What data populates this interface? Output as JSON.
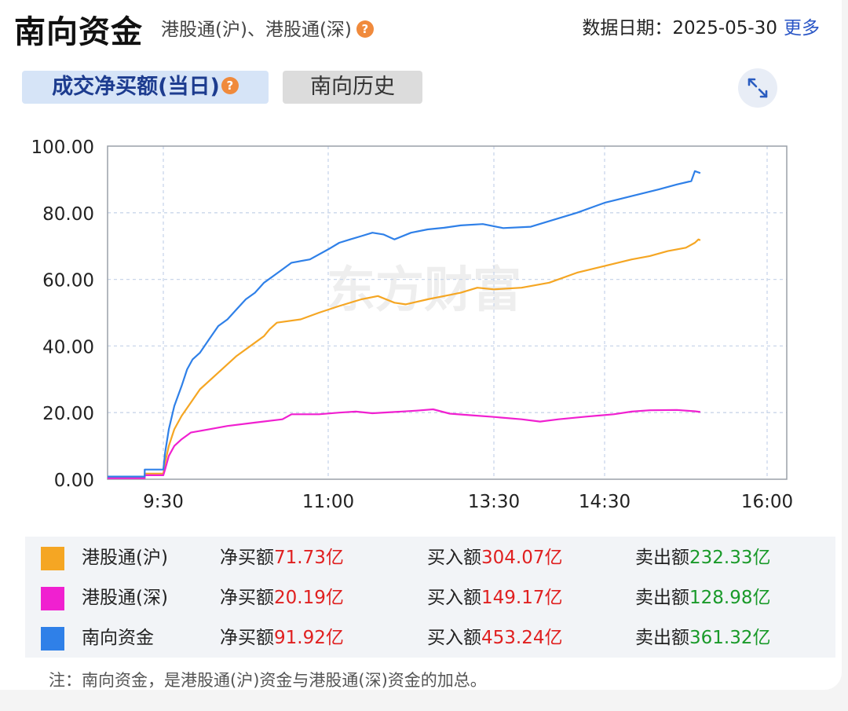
{
  "header": {
    "title": "南向资金",
    "subtitle": "港股通(沪)、港股通(深)",
    "date_label": "数据日期：",
    "date_value": "2025-05-30",
    "more_label": "更多"
  },
  "tabs": [
    {
      "label": "成交净买额(当日)",
      "active": true
    },
    {
      "label": "南向历史",
      "active": false
    }
  ],
  "icons": {
    "help": "?",
    "expand": "expand-arrows-icon"
  },
  "watermark": "东方财富",
  "chart_data": {
    "type": "line",
    "x_ticks": [
      "9:30",
      "11:00",
      "13:30",
      "14:30",
      "16:00"
    ],
    "y_ticks": [
      "100.00",
      "80.00",
      "60.00",
      "40.00",
      "20.00",
      "0.00"
    ],
    "ylim": [
      0,
      100
    ],
    "grid": true,
    "series": [
      {
        "name": "港股通(沪)",
        "color": "#f5a623",
        "points": [
          [
            "9:00",
            0.5
          ],
          [
            "9:20",
            0.5
          ],
          [
            "9:20",
            1.7
          ],
          [
            "9:30",
            1.7
          ],
          [
            "9:31",
            5
          ],
          [
            "9:33",
            10
          ],
          [
            "9:36",
            15
          ],
          [
            "9:40",
            19
          ],
          [
            "9:45",
            23
          ],
          [
            "9:50",
            27
          ],
          [
            "10:00",
            32
          ],
          [
            "10:10",
            37
          ],
          [
            "10:20",
            41
          ],
          [
            "10:25",
            43
          ],
          [
            "10:28",
            45
          ],
          [
            "10:32",
            47
          ],
          [
            "10:45",
            48
          ],
          [
            "10:55",
            50
          ],
          [
            "11:10",
            52
          ],
          [
            "11:30",
            54
          ],
          [
            "11:45",
            55
          ],
          [
            "12:00",
            53
          ],
          [
            "12:10",
            52.5
          ],
          [
            "12:30",
            54
          ],
          [
            "12:45",
            55
          ],
          [
            "13:00",
            56
          ],
          [
            "13:15",
            57.5
          ],
          [
            "13:30",
            57
          ],
          [
            "13:45",
            57.5
          ],
          [
            "14:00",
            59
          ],
          [
            "14:15",
            62
          ],
          [
            "14:30",
            64
          ],
          [
            "14:45",
            66
          ],
          [
            "14:55",
            67
          ],
          [
            "15:05",
            68.5
          ],
          [
            "15:15",
            69.5
          ],
          [
            "15:20",
            71
          ],
          [
            "15:22",
            72
          ],
          [
            "15:23",
            71.73
          ]
        ]
      },
      {
        "name": "港股通(深)",
        "color": "#f020d0",
        "points": [
          [
            "9:00",
            0.3
          ],
          [
            "9:20",
            0.3
          ],
          [
            "9:20",
            1.2
          ],
          [
            "9:30",
            1.2
          ],
          [
            "9:31",
            3
          ],
          [
            "9:33",
            7
          ],
          [
            "9:36",
            10
          ],
          [
            "9:40",
            12
          ],
          [
            "9:45",
            14
          ],
          [
            "9:55",
            15
          ],
          [
            "10:05",
            16
          ],
          [
            "10:20",
            17
          ],
          [
            "10:35",
            18
          ],
          [
            "10:40",
            19.5
          ],
          [
            "10:55",
            19.5
          ],
          [
            "11:10",
            20
          ],
          [
            "11:25",
            20.3
          ],
          [
            "11:40",
            19.8
          ],
          [
            "12:00",
            20.2
          ],
          [
            "12:20",
            20.6
          ],
          [
            "12:35",
            21
          ],
          [
            "12:50",
            19.7
          ],
          [
            "13:10",
            19.2
          ],
          [
            "13:30",
            18.7
          ],
          [
            "13:45",
            18
          ],
          [
            "13:55",
            17.3
          ],
          [
            "14:05",
            18
          ],
          [
            "14:20",
            18.8
          ],
          [
            "14:35",
            19.5
          ],
          [
            "14:45",
            20.3
          ],
          [
            "14:55",
            20.7
          ],
          [
            "15:10",
            20.8
          ],
          [
            "15:20",
            20.4
          ],
          [
            "15:23",
            20.19
          ]
        ]
      },
      {
        "name": "南向资金",
        "color": "#2f80e8",
        "points": [
          [
            "9:00",
            0.8
          ],
          [
            "9:20",
            0.8
          ],
          [
            "9:20",
            2.9
          ],
          [
            "9:30",
            2.9
          ],
          [
            "9:31",
            8
          ],
          [
            "9:33",
            15
          ],
          [
            "9:36",
            22
          ],
          [
            "9:40",
            28
          ],
          [
            "9:43",
            33
          ],
          [
            "9:46",
            36
          ],
          [
            "9:50",
            38
          ],
          [
            "9:55",
            42
          ],
          [
            "10:00",
            46
          ],
          [
            "10:05",
            48
          ],
          [
            "10:10",
            51
          ],
          [
            "10:15",
            54
          ],
          [
            "10:20",
            56
          ],
          [
            "10:25",
            59
          ],
          [
            "10:30",
            61
          ],
          [
            "10:35",
            63
          ],
          [
            "10:40",
            65
          ],
          [
            "10:50",
            66
          ],
          [
            "11:00",
            69
          ],
          [
            "11:10",
            71
          ],
          [
            "11:20",
            72
          ],
          [
            "11:30",
            73
          ],
          [
            "11:40",
            74
          ],
          [
            "11:50",
            73.5
          ],
          [
            "12:00",
            72
          ],
          [
            "12:15",
            74
          ],
          [
            "12:30",
            75
          ],
          [
            "12:45",
            75.5
          ],
          [
            "13:00",
            76.2
          ],
          [
            "13:20",
            76.6
          ],
          [
            "13:35",
            75.4
          ],
          [
            "13:50",
            75.8
          ],
          [
            "14:00",
            77.5
          ],
          [
            "14:15",
            80
          ],
          [
            "14:30",
            83
          ],
          [
            "14:45",
            85
          ],
          [
            "15:00",
            87
          ],
          [
            "15:10",
            88.5
          ],
          [
            "15:18",
            89.5
          ],
          [
            "15:20",
            92.5
          ],
          [
            "15:23",
            91.92
          ]
        ]
      }
    ]
  },
  "legend": [
    {
      "name": "港股通(沪)",
      "color": "#f5a623",
      "net_label": "净买额",
      "net_value": "71.73亿",
      "buy_label": "买入额",
      "buy_value": "304.07亿",
      "sell_label": "卖出额",
      "sell_value": "232.33亿"
    },
    {
      "name": "港股通(深)",
      "color": "#f020d0",
      "net_label": "净买额",
      "net_value": "20.19亿",
      "buy_label": "买入额",
      "buy_value": "149.17亿",
      "sell_label": "卖出额",
      "sell_value": "128.98亿"
    },
    {
      "name": "南向资金",
      "color": "#2f80e8",
      "net_label": "净买额",
      "net_value": "91.92亿",
      "buy_label": "买入额",
      "buy_value": "453.24亿",
      "sell_label": "卖出额",
      "sell_value": "361.32亿"
    }
  ],
  "note": "注：南向资金，是港股通(沪)资金与港股通(深)资金的加总。"
}
